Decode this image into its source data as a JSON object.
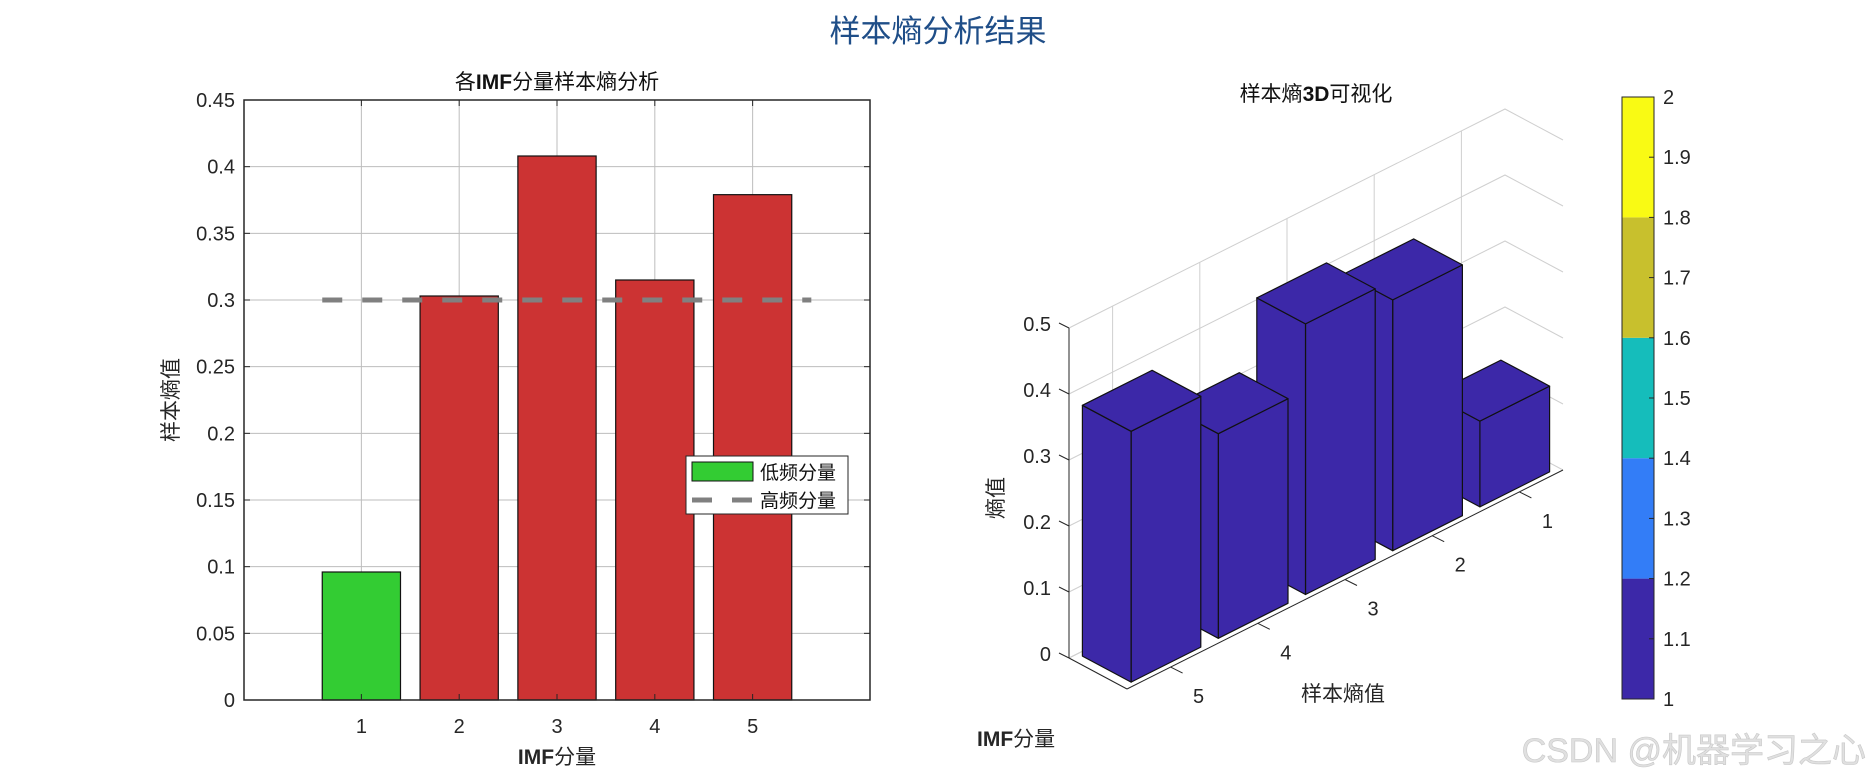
{
  "figure": {
    "suptitle": "样本熵分析结果",
    "watermark": "CSDN @机器学习之心"
  },
  "chart_data": [
    {
      "type": "bar",
      "title": "各IMF分量样本熵分析",
      "title_parts": [
        "各",
        "IMF",
        "分量样本熵分析"
      ],
      "xlabel": "IMF分量",
      "xlabel_parts": [
        "IMF",
        "分量"
      ],
      "ylabel": "样本熵值",
      "categories": [
        "1",
        "2",
        "3",
        "4",
        "5"
      ],
      "values": [
        0.096,
        0.303,
        0.408,
        0.315,
        0.379
      ],
      "bar_colors": [
        "#33cc33",
        "#cc3333",
        "#cc3333",
        "#cc3333",
        "#cc3333"
      ],
      "threshold": {
        "value": 0.3,
        "color": "#808080",
        "style": "dashed"
      },
      "xlim": [
        -0.2,
        6.2
      ],
      "ylim": [
        0,
        0.45
      ],
      "yticks": [
        0,
        0.05,
        0.1,
        0.15,
        0.2,
        0.25,
        0.3,
        0.35,
        0.4,
        0.45
      ],
      "ytick_labels": [
        "0",
        "0.05",
        "0.1",
        "0.15",
        "0.2",
        "0.25",
        "0.3",
        "0.35",
        "0.4",
        "0.45"
      ],
      "grid": true,
      "legend": {
        "position": "east",
        "entries": [
          {
            "label": "低频分量",
            "type": "patch",
            "color": "#33cc33"
          },
          {
            "label": "高频分量",
            "type": "dashed-line",
            "color": "#808080"
          }
        ]
      }
    },
    {
      "type": "bar3",
      "title": "样本熵3D可视化",
      "title_parts": [
        "样本熵",
        "3D",
        "可视化"
      ],
      "xlabel": "IMF分量",
      "xlabel_parts": [
        "IMF",
        "分量"
      ],
      "ylabel": "样本熵值",
      "zlabel": "熵值",
      "categories": [
        "1",
        "2",
        "3",
        "4",
        "5"
      ],
      "values": [
        0.13,
        0.38,
        0.41,
        0.31,
        0.38
      ],
      "bar_color": "#3c28a8",
      "zlim": [
        0,
        0.5
      ],
      "zticks": [
        "0",
        "0.1",
        "0.2",
        "0.3",
        "0.4",
        "0.5"
      ],
      "grid": true,
      "colorbar": {
        "range": [
          1,
          2
        ],
        "ticks": [
          "1",
          "1.1",
          "1.2",
          "1.3",
          "1.4",
          "1.5",
          "1.6",
          "1.7",
          "1.8",
          "1.9",
          "2"
        ],
        "segments": [
          {
            "from": 1.0,
            "to": 1.2,
            "color": "#3c28a8"
          },
          {
            "from": 1.2,
            "to": 1.4,
            "color": "#337df7"
          },
          {
            "from": 1.4,
            "to": 1.6,
            "color": "#15bdbb"
          },
          {
            "from": 1.6,
            "to": 1.8,
            "color": "#c8c02d"
          },
          {
            "from": 1.8,
            "to": 2.0,
            "color": "#f9fa14"
          }
        ]
      }
    }
  ]
}
